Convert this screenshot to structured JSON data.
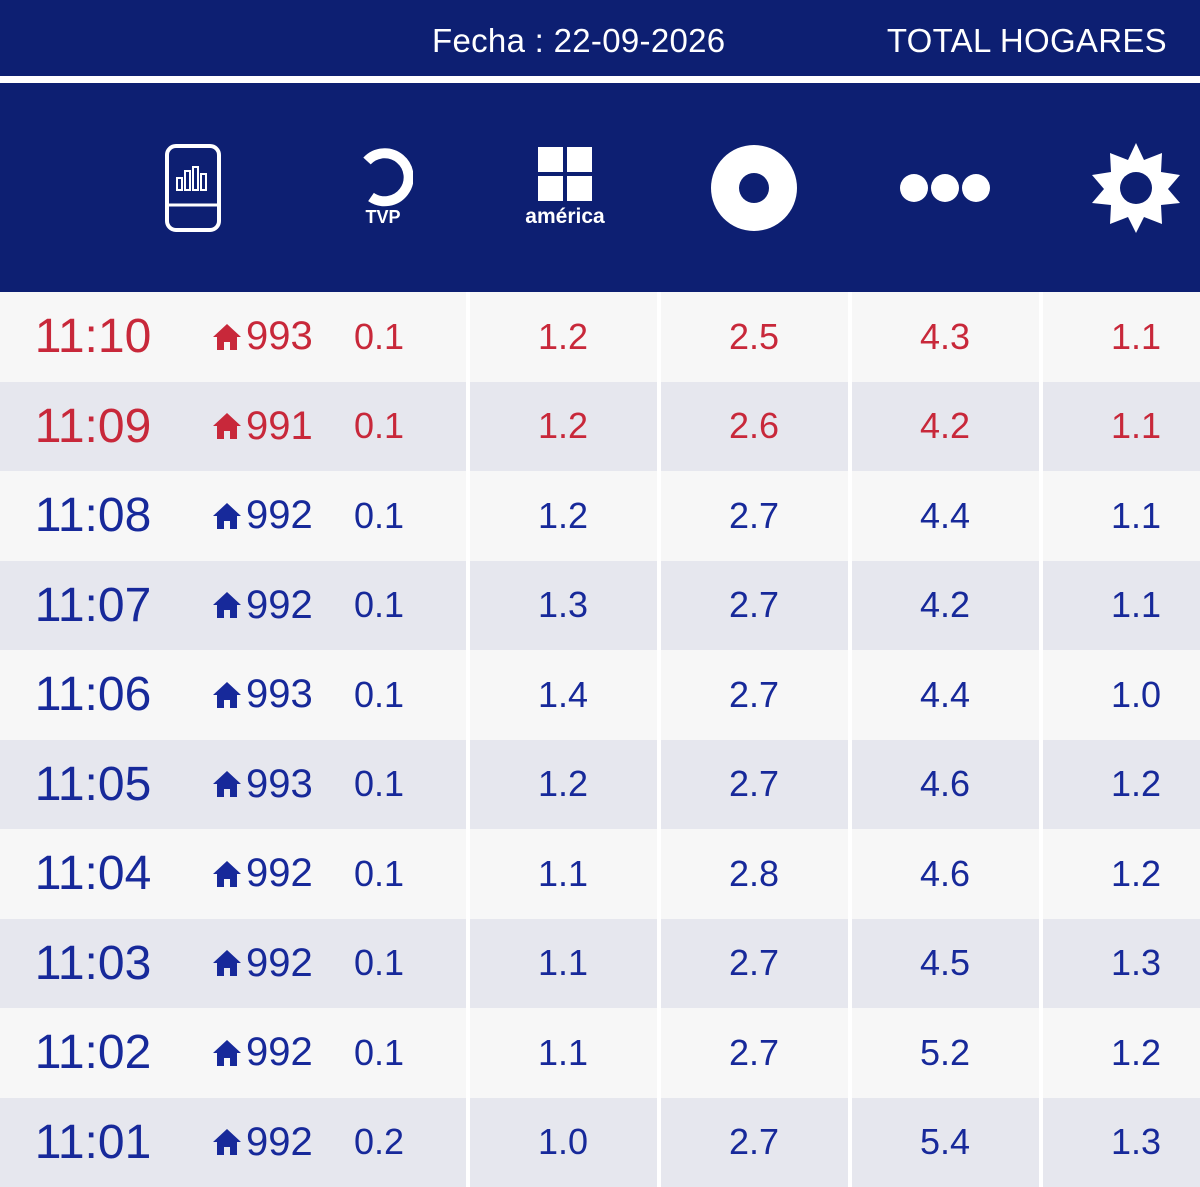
{
  "header": {
    "fecha": "Fecha : 22-09-2026",
    "total": "TOTAL HOGARES",
    "channels": [
      {
        "icon": "tv-audience-icon"
      },
      {
        "icon": "tvp-logo-icon",
        "label": "TVP"
      },
      {
        "icon": "america-logo-icon",
        "label": "américa"
      },
      {
        "icon": "ring-logo-icon"
      },
      {
        "icon": "three-dots-logo-icon"
      },
      {
        "icon": "sun-logo-icon"
      }
    ]
  },
  "colors": {
    "navy": "#0d1f72",
    "red": "#c8283a",
    "blue": "#17299a"
  },
  "rows": [
    {
      "time": "11:10",
      "hogares": "993",
      "tvp": "0.1",
      "america": "1.2",
      "ring": "2.5",
      "dots": "4.3",
      "sun": "1.1",
      "highlight": true
    },
    {
      "time": "11:09",
      "hogares": "991",
      "tvp": "0.1",
      "america": "1.2",
      "ring": "2.6",
      "dots": "4.2",
      "sun": "1.1",
      "highlight": true
    },
    {
      "time": "11:08",
      "hogares": "992",
      "tvp": "0.1",
      "america": "1.2",
      "ring": "2.7",
      "dots": "4.4",
      "sun": "1.1",
      "highlight": false
    },
    {
      "time": "11:07",
      "hogares": "992",
      "tvp": "0.1",
      "america": "1.3",
      "ring": "2.7",
      "dots": "4.2",
      "sun": "1.1",
      "highlight": false
    },
    {
      "time": "11:06",
      "hogares": "993",
      "tvp": "0.1",
      "america": "1.4",
      "ring": "2.7",
      "dots": "4.4",
      "sun": "1.0",
      "highlight": false
    },
    {
      "time": "11:05",
      "hogares": "993",
      "tvp": "0.1",
      "america": "1.2",
      "ring": "2.7",
      "dots": "4.6",
      "sun": "1.2",
      "highlight": false
    },
    {
      "time": "11:04",
      "hogares": "992",
      "tvp": "0.1",
      "america": "1.1",
      "ring": "2.8",
      "dots": "4.6",
      "sun": "1.2",
      "highlight": false
    },
    {
      "time": "11:03",
      "hogares": "992",
      "tvp": "0.1",
      "america": "1.1",
      "ring": "2.7",
      "dots": "4.5",
      "sun": "1.3",
      "highlight": false
    },
    {
      "time": "11:02",
      "hogares": "992",
      "tvp": "0.1",
      "america": "1.1",
      "ring": "2.7",
      "dots": "5.2",
      "sun": "1.2",
      "highlight": false
    },
    {
      "time": "11:01",
      "hogares": "992",
      "tvp": "0.2",
      "america": "1.0",
      "ring": "2.7",
      "dots": "5.4",
      "sun": "1.3",
      "highlight": false
    }
  ]
}
